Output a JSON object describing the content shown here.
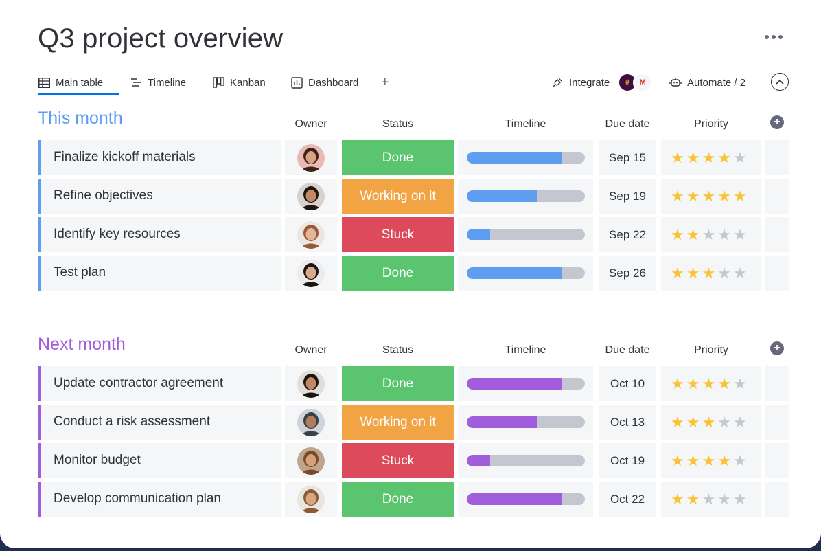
{
  "page": {
    "title": "Q3 project overview"
  },
  "tabs": [
    {
      "label": "Main table",
      "icon": "table-icon",
      "active": true
    },
    {
      "label": "Timeline",
      "icon": "timeline-icon",
      "active": false
    },
    {
      "label": "Kanban",
      "icon": "kanban-icon",
      "active": false
    },
    {
      "label": "Dashboard",
      "icon": "dashboard-icon",
      "active": false
    }
  ],
  "toolbar": {
    "add_view": "+",
    "integrate_label": "Integrate",
    "automate_label": "Automate / 2",
    "integrate_apps": [
      {
        "name": "slack",
        "letter": "#"
      },
      {
        "name": "gmail",
        "letter": "M"
      }
    ]
  },
  "columns": {
    "owner": "Owner",
    "status": "Status",
    "timeline": "Timeline",
    "due_date": "Due date",
    "priority": "Priority"
  },
  "colors": {
    "done": "#5ac46f",
    "working": "#f2a444",
    "stuck": "#dc4a5b",
    "blue": "#5e9df0",
    "purple": "#a25ddc",
    "star_on": "#fbc234",
    "star_off": "#c5c7d0"
  },
  "groups": [
    {
      "title": "This month",
      "color": "#5e9df0",
      "items": [
        {
          "name": "Finalize kickoff materials",
          "status": "Done",
          "status_key": "done",
          "progress": 0.8,
          "due": "Sep 15",
          "stars": 4,
          "avatar_skin": "#d9a283",
          "avatar_hair": "#3b2416",
          "avatar_bg": "#e8b9b5"
        },
        {
          "name": "Refine objectives",
          "status": "Working on it",
          "status_key": "working",
          "progress": 0.6,
          "due": "Sep 19",
          "stars": 5,
          "avatar_skin": "#c48a67",
          "avatar_hair": "#1f1612",
          "avatar_bg": "#d7d2cc"
        },
        {
          "name": "Identify key resources",
          "status": "Stuck",
          "status_key": "stuck",
          "progress": 0.2,
          "due": "Sep 22",
          "stars": 2,
          "avatar_skin": "#e1b79a",
          "avatar_hair": "#9a5a34",
          "avatar_bg": "#ece6e0"
        },
        {
          "name": "Test plan",
          "status": "Done",
          "status_key": "done",
          "progress": 0.8,
          "due": "Sep 26",
          "stars": 3,
          "avatar_skin": "#d8a98a",
          "avatar_hair": "#1b1511",
          "avatar_bg": "#ececec"
        }
      ]
    },
    {
      "title": "Next month",
      "color": "#a25ddc",
      "items": [
        {
          "name": "Update contractor agreement",
          "status": "Done",
          "status_key": "done",
          "progress": 0.8,
          "due": "Oct 10",
          "stars": 4,
          "avatar_skin": "#c08867",
          "avatar_hair": "#1d1410",
          "avatar_bg": "#e2ddd6"
        },
        {
          "name": "Conduct a risk assessment",
          "status": "Working on it",
          "status_key": "working",
          "progress": 0.6,
          "due": "Oct 13",
          "stars": 3,
          "avatar_skin": "#b07e5f",
          "avatar_hair": "#3a3f4a",
          "avatar_bg": "#cfd4da"
        },
        {
          "name": "Monitor budget",
          "status": "Stuck",
          "status_key": "stuck",
          "progress": 0.2,
          "due": "Oct 19",
          "stars": 4,
          "avatar_skin": "#d5a07c",
          "avatar_hair": "#7b4a2a",
          "avatar_bg": "#bfa58c"
        },
        {
          "name": "Develop communication plan",
          "status": "Done",
          "status_key": "done",
          "progress": 0.8,
          "due": "Oct 22",
          "stars": 2,
          "avatar_skin": "#d8a585",
          "avatar_hair": "#8a5a34",
          "avatar_bg": "#e9e4dc"
        }
      ]
    }
  ]
}
